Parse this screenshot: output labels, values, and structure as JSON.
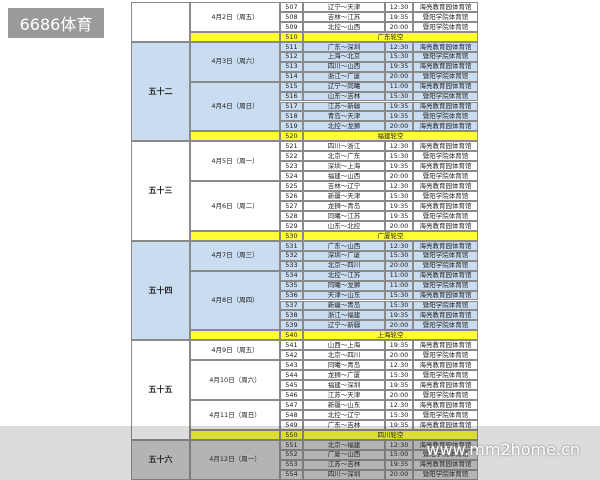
{
  "watermark": "6686体育",
  "site": "www.mm2home.cn",
  "rounds": [
    {
      "color": "#ffffff",
      "dates": [
        {
          "date": "4月2日（周五）",
          "games": [
            [
              "507",
              "辽宁～天津",
              "12:30",
              "海亮教育园体育馆"
            ],
            [
              "508",
              "吉林～江苏",
              "19:35",
              "暨阳学院体育馆"
            ],
            [
              "509",
              "北控～山西",
              "20:00",
              "暨阳学院体育馆"
            ]
          ]
        }
      ],
      "bye": [
        "510",
        "广东轮空"
      ]
    },
    {
      "label": "五十二",
      "color": "#c9dcf0",
      "dates": [
        {
          "date": "4月3日（周六）",
          "games": [
            [
              "511",
              "广东～深圳",
              "12:30",
              "海亮教育园体育馆"
            ],
            [
              "512",
              "上海～北京",
              "15:30",
              "暨阳学院体育馆"
            ],
            [
              "513",
              "四川～山西",
              "19:35",
              "海亮教育园体育馆"
            ],
            [
              "514",
              "浙江～广厦",
              "20:00",
              "暨阳学院体育馆"
            ]
          ]
        },
        {
          "date": "4月4日（周日）",
          "games": [
            [
              "515",
              "辽宁～同曦",
              "11:00",
              "海亮教育园体育馆"
            ],
            [
              "516",
              "山东～吉林",
              "15:30",
              "暨阳学院体育馆"
            ],
            [
              "517",
              "江苏～新疆",
              "19:35",
              "海亮教育园体育馆"
            ],
            [
              "518",
              "青岛～天津",
              "19:35",
              "暨阳学院体育馆"
            ],
            [
              "519",
              "北控～龙狮",
              "20:00",
              "海亮教育园体育馆"
            ]
          ]
        }
      ],
      "bye": [
        "520",
        "福建轮空"
      ]
    },
    {
      "label": "五十三",
      "color": "#ffffff",
      "dates": [
        {
          "date": "4月5日（周一）",
          "games": [
            [
              "521",
              "四川～浙江",
              "12:30",
              "海亮教育园体育馆"
            ],
            [
              "522",
              "北京～广东",
              "15:30",
              "暨阳学院体育馆"
            ],
            [
              "523",
              "深圳～上海",
              "19:35",
              "海亮教育园体育馆"
            ],
            [
              "524",
              "福建～山西",
              "20:00",
              "暨阳学院体育馆"
            ]
          ]
        },
        {
          "date": "4月6日（周二）",
          "games": [
            [
              "525",
              "吉林～辽宁",
              "12:30",
              "海亮教育园体育馆"
            ],
            [
              "526",
              "新疆～天津",
              "15:30",
              "暨阳学院体育馆"
            ],
            [
              "527",
              "龙狮～青岛",
              "19:35",
              "海亮教育园体育馆"
            ],
            [
              "528",
              "同曦～江苏",
              "19:35",
              "暨阳学院体育馆"
            ],
            [
              "529",
              "山东～北控",
              "20:00",
              "海亮教育园体育馆"
            ]
          ]
        }
      ],
      "bye": [
        "530",
        "广厦轮空"
      ]
    },
    {
      "label": "五十四",
      "color": "#c9dcf0",
      "dates": [
        {
          "date": "4月7日（周三）",
          "games": [
            [
              "531",
              "广东～山西",
              "12:30",
              "海亮教育园体育馆"
            ],
            [
              "532",
              "深圳～广厦",
              "15:30",
              "暨阳学院体育馆"
            ],
            [
              "533",
              "北京～四川",
              "20:00",
              "暨阳学院体育馆"
            ]
          ]
        },
        {
          "date": "4月8日（周四）",
          "games": [
            [
              "534",
              "北控～江苏",
              "11:00",
              "海亮教育园体育馆"
            ],
            [
              "535",
              "同曦～龙狮",
              "11:00",
              "暨阳学院体育馆"
            ],
            [
              "536",
              "天津～山东",
              "15:30",
              "海亮教育园体育馆"
            ],
            [
              "537",
              "新疆～青岛",
              "15:30",
              "暨阳学院体育馆"
            ],
            [
              "538",
              "浙江～福建",
              "19:35",
              "海亮教育园体育馆"
            ],
            [
              "539",
              "辽宁～新疆",
              "20:00",
              "暨阳学院体育馆"
            ]
          ]
        }
      ],
      "bye": [
        "540",
        "上海轮空"
      ]
    },
    {
      "label": "五十五",
      "color": "#ffffff",
      "dates": [
        {
          "date": "4月9日（周五）",
          "games": [
            [
              "541",
              "山西～上海",
              "19:35",
              "海亮教育园体育馆"
            ],
            [
              "542",
              "北京～四川",
              "20:00",
              "暨阳学院体育馆"
            ]
          ]
        },
        {
          "date": "4月10日（周六）",
          "games": [
            [
              "543",
              "同曦～青岛",
              "12:30",
              "海亮教育园体育馆"
            ],
            [
              "544",
              "龙狮～广厦",
              "15:30",
              "暨阳学院体育馆"
            ],
            [
              "545",
              "福建～深圳",
              "19:35",
              "海亮教育园体育馆"
            ],
            [
              "546",
              "江苏～天津",
              "20:00",
              "暨阳学院体育馆"
            ]
          ]
        },
        {
          "date": "4月11日（周日）",
          "games": [
            [
              "547",
              "新疆～山东",
              "12:30",
              "海亮教育园体育馆"
            ],
            [
              "548",
              "北控～辽宁",
              "15:30",
              "暨阳学院体育馆"
            ],
            [
              "549",
              "广东～吉林",
              "19:35",
              "海亮教育园体育馆"
            ]
          ]
        }
      ],
      "bye": [
        "550",
        "四川轮空"
      ]
    },
    {
      "label": "五十六",
      "color": "#cfcfcf",
      "dates": [
        {
          "date": "4月12日（周一）",
          "games": [
            [
              "551",
              "北京～福建",
              "12:30",
              "海亮教育园体育馆"
            ],
            [
              "552",
              "广厦～山西",
              "15:00",
              "暨阳学院体育馆"
            ],
            [
              "553",
              "江苏～吉林",
              "19:35",
              "海亮教育园体育馆"
            ],
            [
              "554",
              "四川～深圳",
              "20:00",
              "暨阳学院体育馆"
            ]
          ]
        }
      ]
    }
  ]
}
